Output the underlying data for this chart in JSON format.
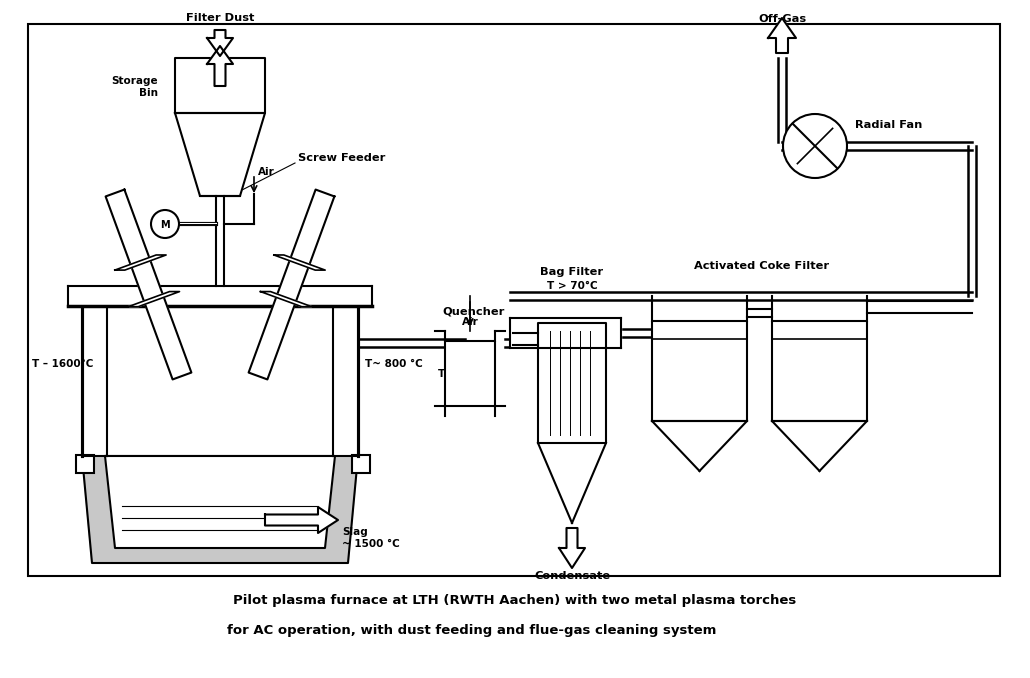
{
  "caption1": "Pilot plasma furnace at LTH (RWTH Aachen) with two metal plasma torches",
  "caption2": "for AC operation, with dust feeding and flue-gas cleaning system",
  "label_filter_dust": "Filter Dust",
  "label_storage_bin": "Storage\nBin",
  "label_screw_feeder": "Screw Feeder",
  "label_air1": "Air",
  "label_quencher": "Quencher",
  "label_air2": "Air",
  "label_bag_filter": "Bag Filter",
  "label_t70": "T > 70°C",
  "label_t130": "T<130 °C",
  "label_t800": "T~ 800 °C",
  "label_t1600": "T – 1600°C",
  "label_condensate": "Condensate",
  "label_slag": "Slag\n~ 1500 °C",
  "label_activated": "Activated Coke Filter",
  "label_off_gas": "Off-Gas",
  "label_radial_fan": "Radial Fan",
  "label_M": "M"
}
